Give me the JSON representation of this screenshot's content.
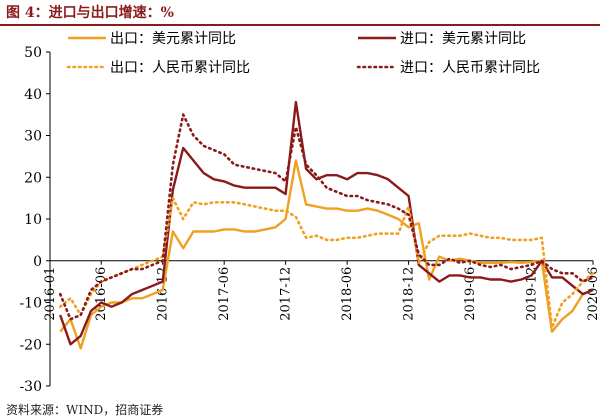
{
  "header": {
    "title": "图 4：进口与出口增速：%"
  },
  "footer": {
    "source": "资料来源：WIND，招商证券"
  },
  "chart_data": {
    "type": "line",
    "title": "图 4：进口与出口增速：%",
    "xlabel": "",
    "ylabel": "",
    "ylim": [
      -30,
      50
    ],
    "yticks": [
      50,
      40,
      30,
      20,
      10,
      0,
      -10,
      -20,
      -30
    ],
    "xlim": [
      "2016-01",
      "2020-06"
    ],
    "xticks": [
      "2016-01",
      "2016-06",
      "2016-12",
      "2017-06",
      "2017-12",
      "2018-06",
      "2018-12",
      "2019-06",
      "2019-12",
      "2020-06"
    ],
    "tick_labels": [
      "2016-01",
      "2016-06",
      "2016-12",
      "2017-06",
      "2017-12",
      "2018-06",
      "2018-12",
      "2019-06",
      "2019-12",
      "2020-06"
    ],
    "grid": false,
    "legend": "top",
    "series": [
      {
        "name": "出口：美元累计同比",
        "color": "#f0a020",
        "style": "solid",
        "x": [
          "2016-02",
          "2016-03",
          "2016-04",
          "2016-05",
          "2016-06",
          "2016-07",
          "2016-08",
          "2016-09",
          "2016-10",
          "2016-11",
          "2016-12",
          "2017-01",
          "2017-02",
          "2017-03",
          "2017-04",
          "2017-05",
          "2017-06",
          "2017-07",
          "2017-08",
          "2017-09",
          "2017-10",
          "2017-11",
          "2017-12",
          "2018-01",
          "2018-02",
          "2018-03",
          "2018-04",
          "2018-05",
          "2018-06",
          "2018-07",
          "2018-08",
          "2018-09",
          "2018-10",
          "2018-11",
          "2018-12",
          "2019-01",
          "2019-02",
          "2019-03",
          "2019-04",
          "2019-05",
          "2019-06",
          "2019-07",
          "2019-08",
          "2019-09",
          "2019-10",
          "2019-11",
          "2019-12",
          "2020-01",
          "2020-02",
          "2020-03",
          "2020-04",
          "2020-05",
          "2020-06"
        ],
        "values": [
          -17,
          -14,
          -21,
          -13,
          -11,
          -10,
          -10,
          -9,
          -9,
          -8,
          -7,
          7,
          3,
          7,
          7,
          7,
          7.5,
          7.5,
          7,
          7,
          7.5,
          8,
          10,
          24,
          13.5,
          13,
          12.5,
          12.5,
          12,
          12,
          12.5,
          12,
          11,
          10,
          8,
          9,
          -4.5,
          1,
          0,
          0.5,
          0,
          -0.5,
          -0.5,
          -0.5,
          -0.3,
          -0.5,
          -0.3,
          0,
          -17,
          -14,
          -12,
          -8,
          -7
        ]
      },
      {
        "name": "进口：美元累计同比",
        "color": "#8b1a1a",
        "style": "solid",
        "x": [
          "2016-02",
          "2016-03",
          "2016-04",
          "2016-05",
          "2016-06",
          "2016-07",
          "2016-08",
          "2016-09",
          "2016-10",
          "2016-11",
          "2016-12",
          "2017-01",
          "2017-02",
          "2017-03",
          "2017-04",
          "2017-05",
          "2017-06",
          "2017-07",
          "2017-08",
          "2017-09",
          "2017-10",
          "2017-11",
          "2017-12",
          "2018-01",
          "2018-02",
          "2018-03",
          "2018-04",
          "2018-05",
          "2018-06",
          "2018-07",
          "2018-08",
          "2018-09",
          "2018-10",
          "2018-11",
          "2018-12",
          "2019-01",
          "2019-02",
          "2019-03",
          "2019-04",
          "2019-05",
          "2019-06",
          "2019-07",
          "2019-08",
          "2019-09",
          "2019-10",
          "2019-11",
          "2019-12",
          "2020-01",
          "2020-02",
          "2020-03",
          "2020-04",
          "2020-05",
          "2020-06"
        ],
        "values": [
          -13,
          -20,
          -18,
          -12,
          -10,
          -11,
          -10,
          -8,
          -7,
          -6,
          -5,
          17,
          27,
          24,
          21,
          19.5,
          19,
          18,
          17.5,
          17.5,
          17.5,
          17.5,
          16,
          38,
          22,
          19.5,
          20.5,
          20.5,
          19.5,
          21,
          21,
          20.5,
          19.5,
          17.5,
          15.5,
          -1,
          -3,
          -5,
          -3.5,
          -3.5,
          -4,
          -4,
          -4.5,
          -4.5,
          -5,
          -4.5,
          -3.5,
          0,
          -4,
          -4,
          -6,
          -8,
          -7
        ]
      },
      {
        "name": "出口：人民币累计同比",
        "color": "#f0a020",
        "style": "dotted",
        "x": [
          "2016-02",
          "2016-03",
          "2016-04",
          "2016-05",
          "2016-06",
          "2016-07",
          "2016-08",
          "2016-09",
          "2016-10",
          "2016-11",
          "2016-12",
          "2017-01",
          "2017-02",
          "2017-03",
          "2017-04",
          "2017-05",
          "2017-06",
          "2017-07",
          "2017-08",
          "2017-09",
          "2017-10",
          "2017-11",
          "2017-12",
          "2018-01",
          "2018-02",
          "2018-03",
          "2018-04",
          "2018-05",
          "2018-06",
          "2018-07",
          "2018-08",
          "2018-09",
          "2018-10",
          "2018-11",
          "2018-12",
          "2019-01",
          "2019-02",
          "2019-03",
          "2019-04",
          "2019-05",
          "2019-06",
          "2019-07",
          "2019-08",
          "2019-09",
          "2019-10",
          "2019-11",
          "2019-12",
          "2020-01",
          "2020-02",
          "2020-03",
          "2020-04",
          "2020-05",
          "2020-06"
        ],
        "values": [
          -11,
          -9,
          -13,
          -8,
          -5,
          -4,
          -3,
          -2,
          -1,
          0,
          1,
          15,
          10,
          14,
          13.5,
          14,
          14,
          14,
          13.5,
          13,
          12.5,
          12,
          12,
          10.5,
          5.5,
          6,
          5,
          5,
          5.5,
          5.5,
          6,
          6.5,
          6.5,
          6.5,
          13,
          -0.5,
          4.5,
          6,
          6,
          6,
          6.5,
          6,
          5.5,
          5.5,
          5,
          5,
          5,
          5.5,
          -16,
          -10,
          -8,
          -5,
          -3
        ]
      },
      {
        "name": "进口：人民币累计同比",
        "color": "#8b1a1a",
        "style": "dotted",
        "x": [
          "2016-02",
          "2016-03",
          "2016-04",
          "2016-05",
          "2016-06",
          "2016-07",
          "2016-08",
          "2016-09",
          "2016-10",
          "2016-11",
          "2016-12",
          "2017-01",
          "2017-02",
          "2017-03",
          "2017-04",
          "2017-05",
          "2017-06",
          "2017-07",
          "2017-08",
          "2017-09",
          "2017-10",
          "2017-11",
          "2017-12",
          "2018-01",
          "2018-02",
          "2018-03",
          "2018-04",
          "2018-05",
          "2018-06",
          "2018-07",
          "2018-08",
          "2018-09",
          "2018-10",
          "2018-11",
          "2018-12",
          "2019-01",
          "2019-02",
          "2019-03",
          "2019-04",
          "2019-05",
          "2019-06",
          "2019-07",
          "2019-08",
          "2019-09",
          "2019-10",
          "2019-11",
          "2019-12",
          "2020-01",
          "2020-02",
          "2020-03",
          "2020-04",
          "2020-05",
          "2020-06"
        ],
        "values": [
          -8,
          -14,
          -13,
          -7,
          -5,
          -4,
          -3,
          -2,
          -2,
          -1,
          0,
          23,
          35,
          30,
          27.5,
          26.5,
          25.5,
          23,
          22.5,
          22,
          21.5,
          21,
          19,
          32,
          23,
          20.5,
          17.5,
          16.5,
          15.5,
          15.5,
          14.5,
          14,
          13.5,
          12.5,
          11,
          1.5,
          -1,
          -1,
          0.5,
          -0.5,
          0,
          -1,
          -1.5,
          -1,
          -2,
          -1.5,
          -1,
          0,
          -2,
          -3,
          -3,
          -5,
          -4
        ]
      }
    ]
  }
}
